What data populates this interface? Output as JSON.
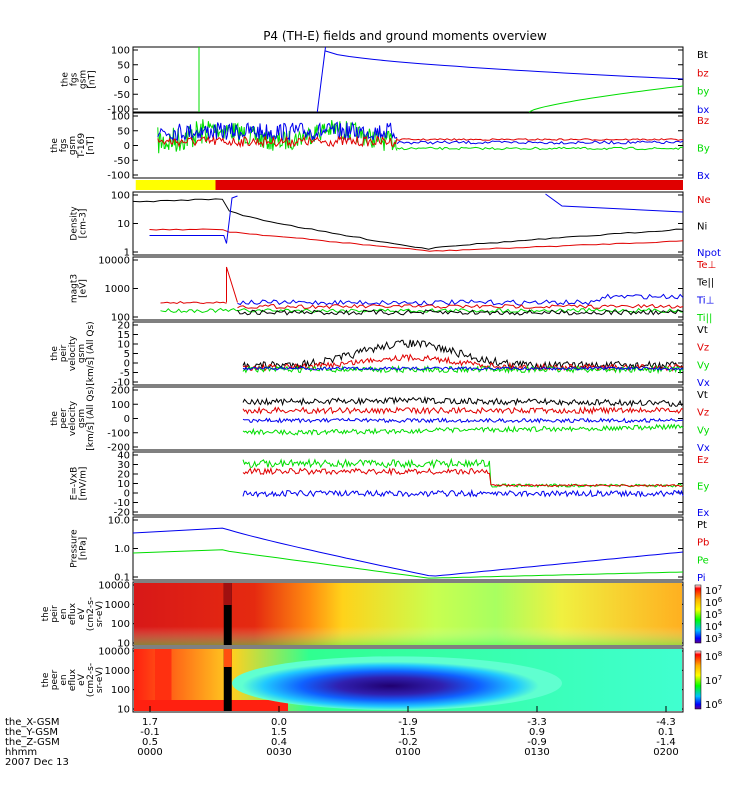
{
  "title": "P4 (TH-E) fields and ground moments overview",
  "time_axis": {
    "row_labels": [
      "the_X-GSM",
      "the_Y-GSM",
      "the_Z-GSM",
      "hhmm",
      "2007 Dec 13"
    ],
    "ticks": [
      {
        "values": [
          "1.7",
          "-0.1",
          "0.5",
          "0000"
        ]
      },
      {
        "values": [
          "0.0",
          "1.5",
          "0.4",
          "0030"
        ]
      },
      {
        "values": [
          "-1.9",
          "1.5",
          "-0.2",
          "0100"
        ]
      },
      {
        "values": [
          "-3.3",
          "0.9",
          "-0.9",
          "0130"
        ]
      },
      {
        "values": [
          "-4.3",
          "0.1",
          "-1.4",
          "0200"
        ]
      }
    ]
  },
  "colors": {
    "black": "#000000",
    "red": "#e00000",
    "green": "#00dd00",
    "blue": "#0000ee",
    "yellow": "#ffff00"
  },
  "chart_data": [
    {
      "type": "line",
      "ylabel": [
        "the",
        "fgs",
        "gsm",
        "[nT]"
      ],
      "yticks": [
        "100",
        "50",
        "0",
        "-50",
        "-100"
      ],
      "ylim": [
        -100,
        100
      ],
      "legend": [
        {
          "label": "Bt",
          "color": "black"
        },
        {
          "label": "bz",
          "color": "red"
        },
        {
          "label": "by",
          "color": "green"
        },
        {
          "label": "bx",
          "color": "blue"
        }
      ]
    },
    {
      "type": "line",
      "ylabel": [
        "the",
        "fgs",
        "gsm",
        "T-169",
        "[nT]"
      ],
      "yticks": [
        "100",
        "50",
        "0",
        "-50",
        "-100"
      ],
      "ylim": [
        -100,
        100
      ],
      "legend": [
        {
          "label": "Bz",
          "color": "red"
        },
        {
          "label": "By",
          "color": "green"
        },
        {
          "label": "Bx",
          "color": "blue"
        }
      ]
    },
    {
      "type": "bar",
      "segments": [
        {
          "from": "0000",
          "to": "0017",
          "color": "yellow"
        },
        {
          "from": "0017",
          "to": "0200",
          "color": "red"
        }
      ]
    },
    {
      "type": "line",
      "ylabel": [
        "Density",
        "[cm-3]"
      ],
      "yticks": [
        "100",
        "10",
        "1"
      ],
      "scale": "log",
      "legend": [
        {
          "label": "Ne",
          "color": "red"
        },
        {
          "label": "Ni",
          "color": "black"
        },
        {
          "label": "Npot",
          "color": "blue"
        }
      ]
    },
    {
      "type": "line",
      "ylabel": [
        "magt3",
        "[eV]"
      ],
      "yticks": [
        "10000",
        "1000",
        "100"
      ],
      "scale": "log",
      "legend": [
        {
          "label": "Te⊥",
          "color": "red"
        },
        {
          "label": "Te||",
          "color": "black"
        },
        {
          "label": "Ti⊥",
          "color": "blue"
        },
        {
          "label": "Ti||",
          "color": "green"
        }
      ]
    },
    {
      "type": "line",
      "ylabel": [
        "the",
        "peir",
        "velocity",
        "gsm",
        "[km/s] (All Qs)"
      ],
      "yticks": [
        "20",
        "15",
        "10",
        "5",
        "0",
        "-5",
        "-10"
      ],
      "legend": [
        {
          "label": "Vt",
          "color": "black"
        },
        {
          "label": "Vz",
          "color": "red"
        },
        {
          "label": "Vy",
          "color": "green"
        },
        {
          "label": "Vx",
          "color": "blue"
        }
      ]
    },
    {
      "type": "line",
      "ylabel": [
        "the",
        "peer",
        "velocity",
        "gsm",
        "[km/s] (All Qs)"
      ],
      "yticks": [
        "200",
        "100",
        "0",
        "-100",
        "-200"
      ],
      "legend": [
        {
          "label": "Vt",
          "color": "black"
        },
        {
          "label": "Vz",
          "color": "red"
        },
        {
          "label": "Vy",
          "color": "green"
        },
        {
          "label": "Vx",
          "color": "blue"
        }
      ]
    },
    {
      "type": "line",
      "ylabel": [
        "E=-VxB",
        "[mV/m]"
      ],
      "yticks": [
        "40",
        "30",
        "20",
        "10",
        "0",
        "-10",
        "-20"
      ],
      "legend": [
        {
          "label": "Ez",
          "color": "red"
        },
        {
          "label": "Ey",
          "color": "green"
        },
        {
          "label": "Ex",
          "color": "blue"
        }
      ]
    },
    {
      "type": "line",
      "ylabel": [
        "Pressure",
        "[nPa]"
      ],
      "yticks": [
        "10.0",
        "1.0",
        "0.1"
      ],
      "scale": "log",
      "legend": [
        {
          "label": "Pt",
          "color": "black"
        },
        {
          "label": "Pb",
          "color": "red"
        },
        {
          "label": "Pe",
          "color": "green"
        },
        {
          "label": "Pi",
          "color": "blue"
        }
      ]
    },
    {
      "type": "heatmap",
      "ylabel": [
        "the",
        "peir",
        "en",
        "eflux",
        "eV",
        "(cm2-s-",
        "sr-eV)"
      ],
      "yticks": [
        "10000",
        "1000",
        "100",
        "10"
      ],
      "colorbar": {
        "ticks": [
          "10^7",
          "10^6",
          "10^5",
          "10^4",
          "10^3"
        ]
      }
    },
    {
      "type": "heatmap",
      "ylabel": [
        "the",
        "peer",
        "en",
        "eflux",
        "eV",
        "(cm2-s-",
        "sr-eV)"
      ],
      "yticks": [
        "10000",
        "1000",
        "100",
        "10"
      ],
      "colorbar": {
        "ticks": [
          "10^8",
          "10^7",
          "10^6"
        ]
      }
    }
  ]
}
